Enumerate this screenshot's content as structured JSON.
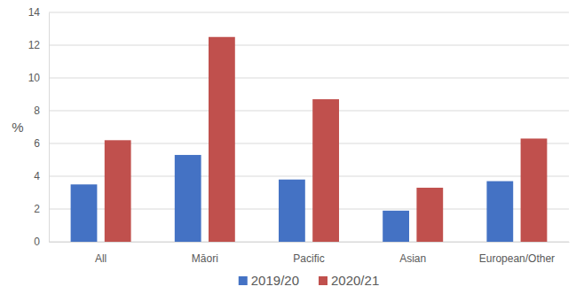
{
  "chart_data": {
    "type": "bar",
    "y_label": "%",
    "categories": [
      "All",
      "Māori",
      "Pacific",
      "Asian",
      "European/Other"
    ],
    "series": [
      {
        "name": "2019/20",
        "color": "#4472c4",
        "values": [
          3.5,
          5.3,
          3.8,
          1.9,
          3.7
        ]
      },
      {
        "name": "2020/21",
        "color": "#c0504d",
        "values": [
          6.2,
          12.5,
          8.7,
          3.3,
          6.3
        ]
      }
    ],
    "ylim": [
      0,
      14
    ],
    "yticks": [
      0,
      2,
      4,
      6,
      8,
      10,
      12,
      14
    ],
    "grid": true,
    "legend": "bottom"
  }
}
